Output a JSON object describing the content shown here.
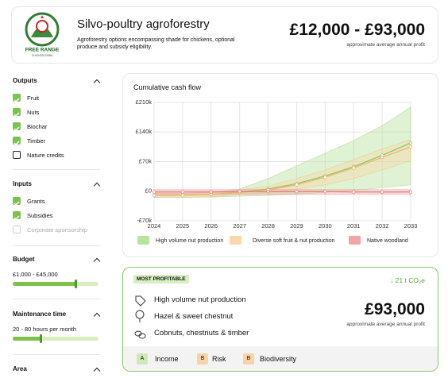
{
  "header": {
    "logo": {
      "line1": "FREE RANGE",
      "line2": "CHICKEN FARM"
    },
    "title": "Silvo-poultry agroforestry",
    "description": "Agroforestry options encompassing shade for chickens, optional produce and subsidy eligibility.",
    "profit_range": "£12,000 - £93,000",
    "profit_caption": "approximate average annual profit"
  },
  "sidebar": {
    "outputs": {
      "title": "Outputs",
      "items": [
        {
          "label": "Fruit",
          "checked": true
        },
        {
          "label": "Nuts",
          "checked": true
        },
        {
          "label": "Biochar",
          "checked": true
        },
        {
          "label": "Timber",
          "checked": true
        },
        {
          "label": "Nature credits",
          "checked": false
        }
      ]
    },
    "inputs": {
      "title": "Inputs",
      "items": [
        {
          "label": "Grants",
          "checked": true
        },
        {
          "label": "Subsidies",
          "checked": true
        },
        {
          "label": "Corporate sponsorship",
          "checked": false,
          "disabled": true
        }
      ]
    },
    "budget": {
      "title": "Budget",
      "range": "£1,000 - £45,000"
    },
    "maintenance": {
      "title": "Maintenance time",
      "range": "20 - 80 hours per month"
    },
    "area": {
      "title": "Area"
    }
  },
  "chart": {
    "type": "line",
    "title": "Cumulative cash flow",
    "x": [
      2024,
      2025,
      2026,
      2027,
      2028,
      2029,
      2030,
      2031,
      2032,
      2033
    ],
    "xlim": [
      2024,
      2033
    ],
    "ylim": [
      -70,
      210
    ],
    "yticks": [
      {
        "value": 210,
        "label": "£210k"
      },
      {
        "value": 140,
        "label": "£140k"
      },
      {
        "value": 70,
        "label": "£70k"
      },
      {
        "value": 0,
        "label": "£0"
      },
      {
        "value": -70,
        "label": "-£70k"
      }
    ],
    "grid": true,
    "series": [
      {
        "name": "High volume nut production",
        "color": "#8cc461",
        "band_color": "#b9e29d",
        "values": [
          -10,
          -10,
          -8,
          -2,
          5,
          18,
          36,
          58,
          85,
          114
        ],
        "high": [
          -5,
          -5,
          -3,
          5,
          30,
          60,
          90,
          120,
          155,
          199
        ],
        "low": [
          -15,
          -15,
          -14,
          -12,
          -10,
          -7,
          -3,
          2,
          8,
          15
        ]
      },
      {
        "name": "Diverse soft fruit & nut production",
        "color": "#f0b470",
        "band_color": "#f9d7a8",
        "values": [
          -10,
          -10,
          -8,
          -3,
          3,
          15,
          33,
          55,
          80,
          105
        ],
        "high": [
          -5,
          -5,
          -3,
          3,
          12,
          30,
          50,
          75,
          100,
          122
        ],
        "low": [
          -15,
          -15,
          -13,
          -8,
          -3,
          5,
          15,
          30,
          50,
          72
        ]
      },
      {
        "name": "Native woodland",
        "color": "#e87c7c",
        "band_color": "#f4a6a6",
        "values": [
          -2,
          -2,
          -2,
          -1,
          -1,
          -1,
          -1,
          -2,
          -2,
          -2
        ],
        "high": [
          4,
          4,
          4,
          4,
          4,
          4,
          4,
          4,
          4,
          4
        ],
        "low": [
          -8,
          -8,
          -8,
          -8,
          -8,
          -8,
          -8,
          -8,
          -8,
          -8
        ]
      }
    ]
  },
  "recommendation": {
    "tag": "MOST PROFITABLE",
    "carbon": "↓ 21 t CO₂e",
    "items": [
      "High volume nut production",
      "Hazel & sweet chestnut",
      "Cobnuts, chestnuts & timber"
    ],
    "profit": "£93,000",
    "profit_caption": "approximate average annual profit",
    "grades": [
      {
        "grade": "A",
        "label": "Income",
        "color": "#cfeab6"
      },
      {
        "grade": "B",
        "label": "Risk",
        "color": "#f8d3a6"
      },
      {
        "grade": "B",
        "label": "Biodiversity",
        "color": "#f8d3a6"
      }
    ]
  }
}
